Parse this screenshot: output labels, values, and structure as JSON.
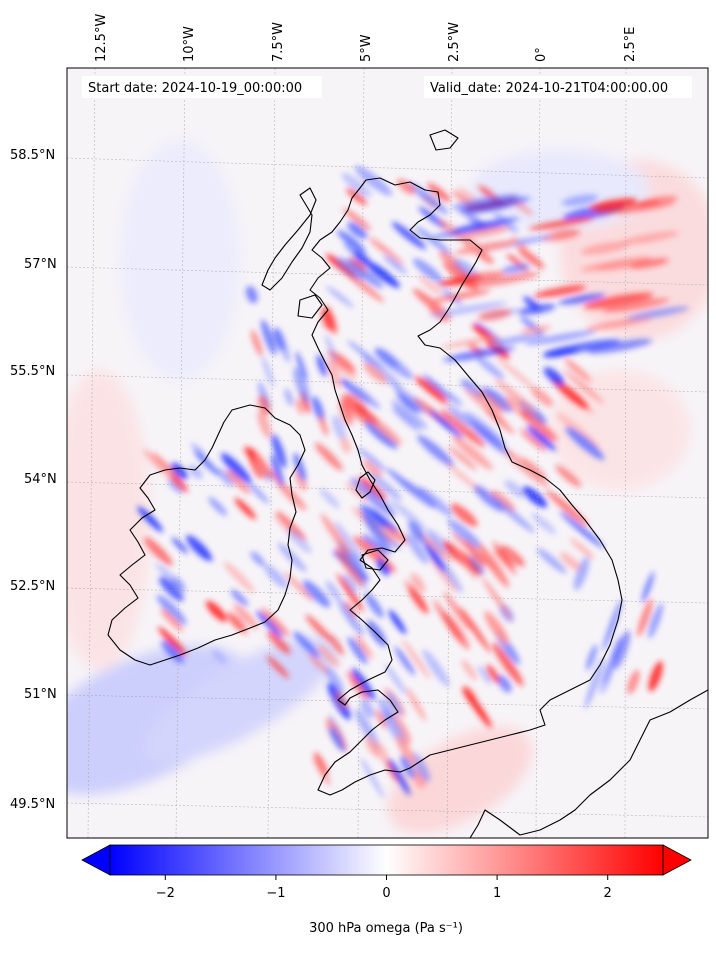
{
  "map": {
    "start_date_label": "Start date: 2024-10-19_00:00:00",
    "valid_date_label": "Valid_date: 2024-10-21T04:00:00.00",
    "lon_labels": [
      "12.5°W",
      "10°W",
      "7.5°W",
      "5°W",
      "2.5°W",
      "0°",
      "2.5°E"
    ],
    "lat_labels": [
      "58.5°N",
      "57°N",
      "55.5°N",
      "54°N",
      "52.5°N",
      "51°N",
      "49.5°N"
    ]
  },
  "colorbar": {
    "label": "300 hPa omega (Pa s⁻¹)",
    "ticks": [
      "−2",
      "−1",
      "0",
      "1",
      "2"
    ],
    "tick_values": [
      -2,
      -1,
      0,
      1,
      2
    ],
    "range": [
      -2.5,
      2.5
    ],
    "colormap": "bwr",
    "extend": "both",
    "low_color": "#0000ff",
    "mid_color": "#ffffff",
    "high_color": "#ff0000"
  }
}
